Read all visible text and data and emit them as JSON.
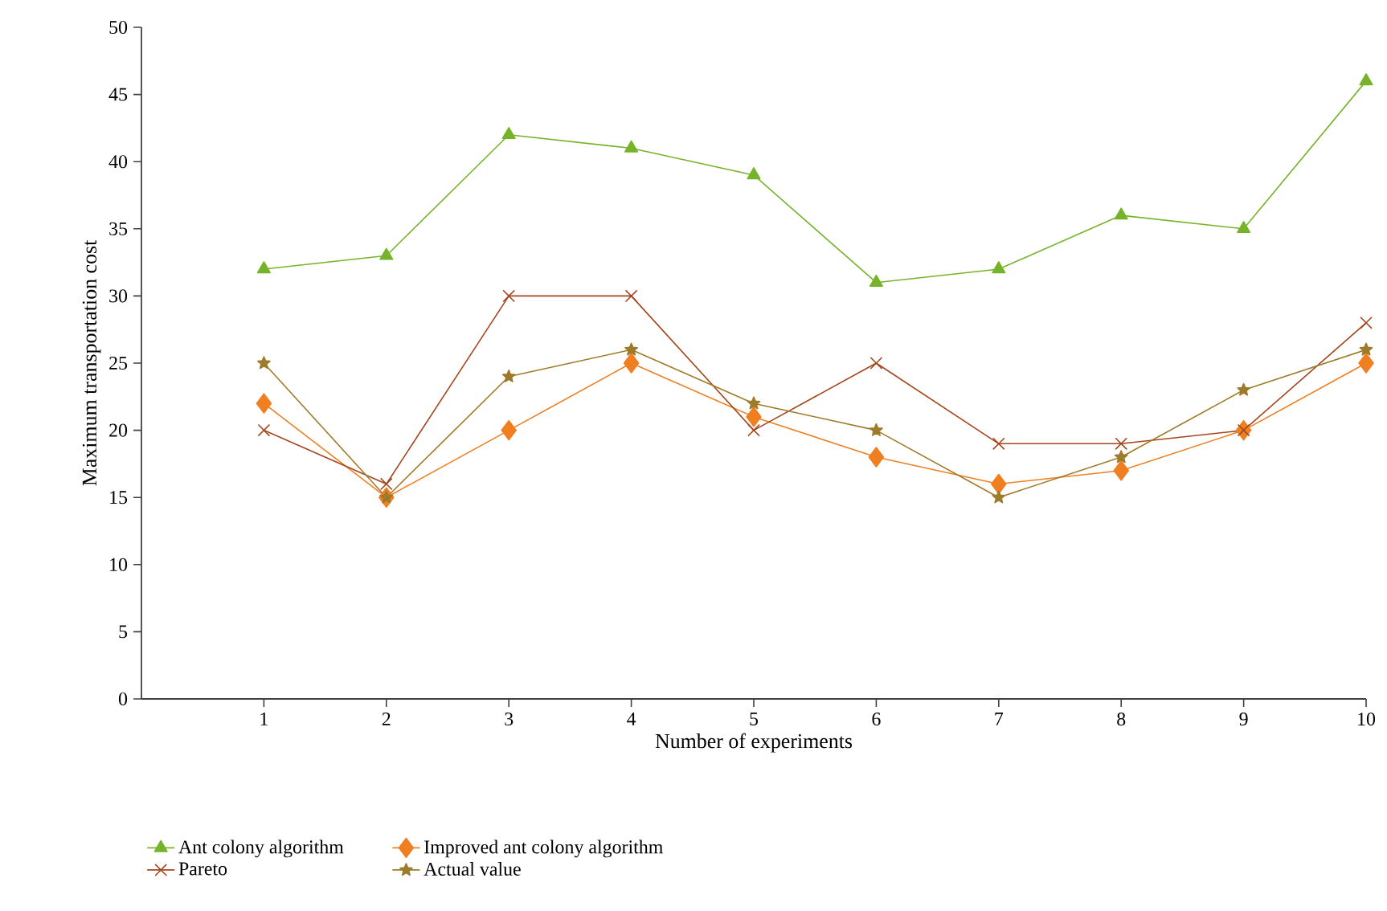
{
  "chart_data": {
    "type": "line",
    "xlabel": "Number of experiments",
    "ylabel": "Maximum transportation cost",
    "x": [
      1,
      2,
      3,
      4,
      5,
      6,
      7,
      8,
      9,
      10
    ],
    "xlim": [
      0,
      10
    ],
    "xticks": [
      1,
      2,
      3,
      4,
      5,
      6,
      7,
      8,
      9,
      10
    ],
    "ylim": [
      0,
      50
    ],
    "yticks": [
      0,
      5,
      10,
      15,
      20,
      25,
      30,
      35,
      40,
      45,
      50
    ],
    "grid": false,
    "legend": "bottom",
    "series": [
      {
        "name": "Ant colony algorithm",
        "color": "#77b32a",
        "marker": "triangle",
        "values": [
          32,
          33,
          42,
          41,
          39,
          31,
          32,
          36,
          35,
          46
        ]
      },
      {
        "name": "Improved ant colony algorithm",
        "color": "#f07f22",
        "marker": "diamond",
        "values": [
          22,
          15,
          20,
          25,
          21,
          18,
          16,
          17,
          20,
          25
        ]
      },
      {
        "name": "Pareto",
        "color": "#a3461c",
        "marker": "cross",
        "values": [
          20,
          16,
          30,
          30,
          20,
          25,
          19,
          19,
          20,
          28
        ]
      },
      {
        "name": "Actual value",
        "color": "#9e7b2a",
        "marker": "star",
        "values": [
          25,
          15,
          24,
          26,
          22,
          20,
          15,
          18,
          23,
          26
        ]
      }
    ]
  }
}
